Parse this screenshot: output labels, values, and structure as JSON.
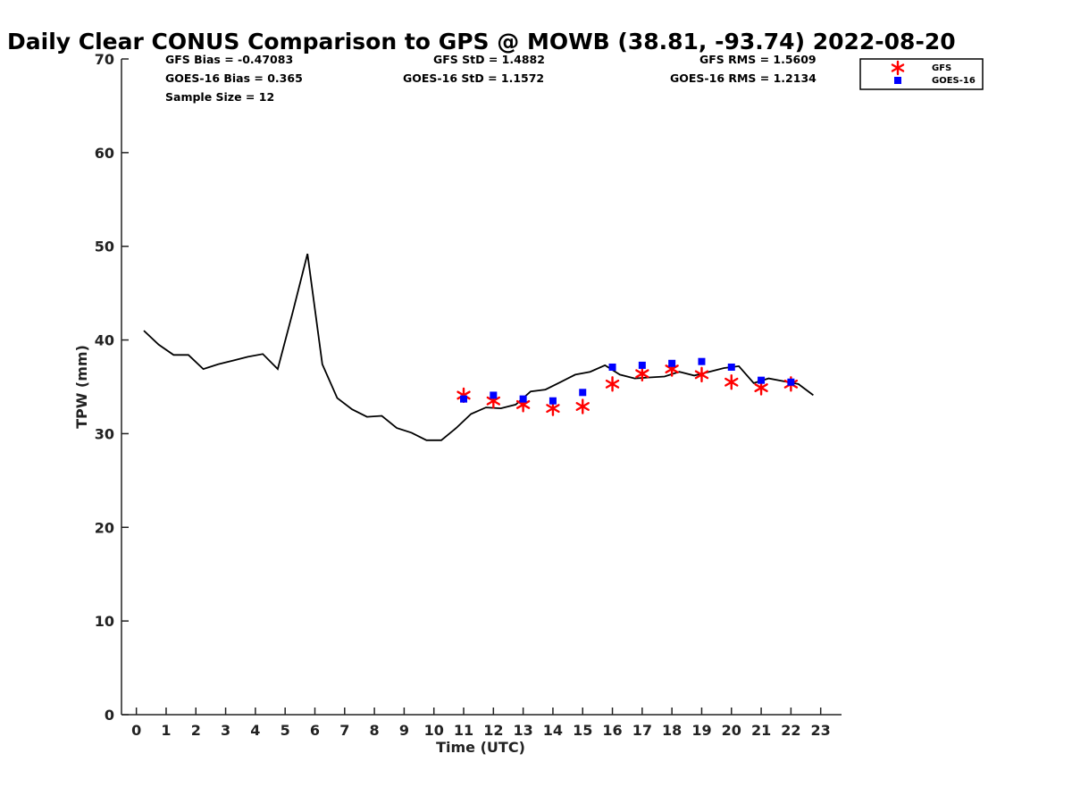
{
  "chart_data": {
    "type": "line",
    "title": "Daily Clear CONUS Comparison to GPS @ MOWB (38.81, -93.74) 2022-08-20",
    "xlabel": "Time (UTC)",
    "ylabel": "TPW (mm)",
    "xlim": [
      -0.5,
      23.7
    ],
    "ylim": [
      0,
      70
    ],
    "xticks": [
      "0",
      "1",
      "2",
      "3",
      "4",
      "5",
      "6",
      "7",
      "8",
      "9",
      "10",
      "11",
      "12",
      "13",
      "14",
      "15",
      "16",
      "17",
      "18",
      "19",
      "20",
      "21",
      "22",
      "23"
    ],
    "yticks": [
      "0",
      "10",
      "20",
      "30",
      "40",
      "50",
      "60",
      "70"
    ],
    "grid": false,
    "legend_position": "top-right",
    "stats": {
      "gfs_bias": "GFS Bias = -0.47083",
      "goes_bias": "GOES-16 Bias = 0.365",
      "sample_size": "Sample Size = 12",
      "gfs_std": "GFS StD = 1.4882",
      "goes_std": "GOES-16 StD = 1.1572",
      "gfs_rms": "GFS RMS = 1.5609",
      "goes_rms": "GOES-16 RMS = 1.2134"
    },
    "gps_line": {
      "x": [
        0.25,
        0.75,
        1.25,
        1.75,
        2.25,
        2.75,
        3.25,
        3.75,
        4.25,
        4.75,
        5.25,
        5.75,
        6.25,
        6.75,
        7.25,
        7.75,
        8.25,
        8.75,
        9.25,
        9.75,
        10.25,
        10.75,
        11.25,
        11.75,
        12.25,
        12.75,
        13.25,
        13.75,
        14.25,
        14.75,
        15.25,
        15.75,
        16.25,
        16.75,
        17.25,
        17.75,
        18.25,
        18.75,
        19.25,
        19.75,
        20.25,
        20.75,
        21.25,
        21.75,
        22.25,
        22.75
      ],
      "y": [
        41.0,
        39.5,
        38.4,
        38.4,
        36.9,
        37.4,
        37.8,
        38.2,
        38.5,
        36.9,
        42.9,
        49.2,
        37.4,
        33.8,
        32.6,
        31.8,
        31.9,
        30.6,
        30.1,
        29.3,
        29.3,
        30.6,
        32.1,
        32.8,
        32.7,
        33.1,
        34.5,
        34.7,
        35.5,
        36.3,
        36.6,
        37.3,
        36.3,
        35.9,
        36.0,
        36.1,
        36.6,
        36.2,
        36.6,
        37.0,
        37.2,
        35.4,
        35.9,
        35.6,
        35.3,
        34.1
      ]
    },
    "series": [
      {
        "name": "GFS",
        "color": "#ff0000",
        "marker": "asterisk",
        "x": [
          11,
          12,
          13,
          14,
          15,
          16,
          17,
          18,
          19,
          20,
          21,
          22
        ],
        "y": [
          34.1,
          33.5,
          33.1,
          32.7,
          32.9,
          35.3,
          36.4,
          36.9,
          36.3,
          35.5,
          34.9,
          35.3
        ]
      },
      {
        "name": "GOES-16",
        "color": "#0000ff",
        "marker": "square",
        "x": [
          11,
          12,
          13,
          14,
          15,
          16,
          17,
          18,
          19,
          20,
          21,
          22
        ],
        "y": [
          33.7,
          34.1,
          33.7,
          33.5,
          34.4,
          37.1,
          37.3,
          37.5,
          37.7,
          37.1,
          35.7,
          35.5
        ]
      }
    ]
  }
}
